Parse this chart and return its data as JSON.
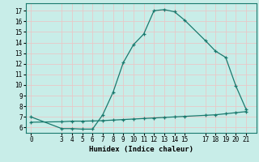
{
  "xlabel": "Humidex (Indice chaleur)",
  "background_color": "#c8ede8",
  "grid_color": "#e8c8c8",
  "line_color": "#1a7a6e",
  "line1_x": [
    0,
    3,
    4,
    5,
    6,
    7,
    8,
    9,
    10,
    11,
    12,
    13,
    14,
    15,
    17,
    18,
    19,
    20,
    21
  ],
  "line1_y": [
    7.0,
    5.9,
    5.9,
    5.85,
    5.85,
    7.2,
    9.3,
    12.1,
    13.8,
    14.8,
    17.0,
    17.1,
    16.9,
    16.1,
    14.2,
    13.2,
    12.6,
    9.9,
    7.7
  ],
  "line2_x": [
    0,
    3,
    4,
    5,
    6,
    7,
    8,
    9,
    10,
    11,
    12,
    13,
    14,
    15,
    17,
    18,
    19,
    20,
    21
  ],
  "line2_y": [
    6.5,
    6.55,
    6.6,
    6.6,
    6.62,
    6.65,
    6.7,
    6.75,
    6.8,
    6.85,
    6.9,
    6.95,
    7.0,
    7.05,
    7.15,
    7.2,
    7.3,
    7.4,
    7.5
  ],
  "ylim": [
    5.5,
    17.7
  ],
  "xlim": [
    -0.5,
    22.0
  ],
  "xticks": [
    0,
    3,
    4,
    5,
    6,
    7,
    8,
    9,
    10,
    11,
    12,
    13,
    14,
    15,
    17,
    18,
    19,
    20,
    21
  ],
  "yticks": [
    6,
    7,
    8,
    9,
    10,
    11,
    12,
    13,
    14,
    15,
    16,
    17
  ],
  "tick_fontsize": 5.5,
  "label_fontsize": 6.5
}
